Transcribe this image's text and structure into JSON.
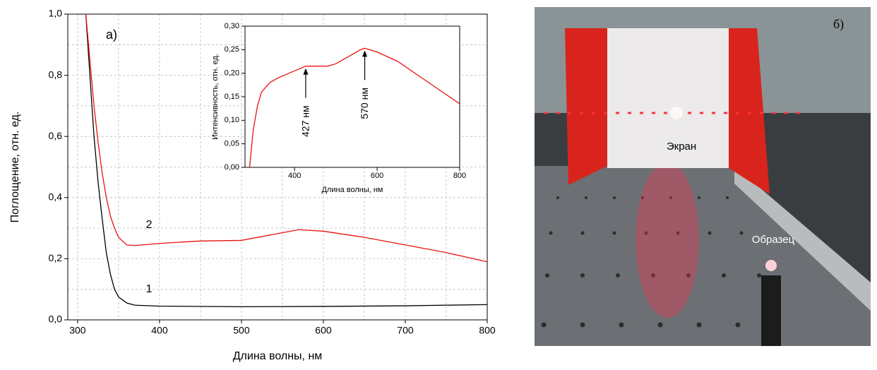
{
  "chart_data": [
    {
      "type": "line",
      "panel_label": "а)",
      "xlabel": "Длина волны, нм",
      "ylabel": "Поглощение, отн. ед.",
      "xlim": [
        288,
        800
      ],
      "ylim": [
        0,
        1
      ],
      "xticks": [
        300,
        400,
        500,
        600,
        700,
        800
      ],
      "yticks": [
        {
          "value": 0,
          "label": "0,0"
        },
        {
          "value": 0.2,
          "label": "0,2"
        },
        {
          "value": 0.4,
          "label": "0,4"
        },
        {
          "value": 0.6,
          "label": "0,6"
        },
        {
          "value": 0.8,
          "label": "0,8"
        },
        {
          "value": 1,
          "label": "1,0"
        }
      ],
      "minor_xticks": [
        350,
        450,
        550,
        650,
        750
      ],
      "minor_yticks": [
        0.1,
        0.3,
        0.5,
        0.7,
        0.9
      ],
      "grid": true,
      "series": [
        {
          "name": "1",
          "color": "#000000",
          "x": [
            310,
            315,
            320,
            325,
            330,
            335,
            340,
            345,
            350,
            360,
            370,
            400,
            500,
            600,
            700,
            800
          ],
          "values": [
            1.0,
            0.8,
            0.6,
            0.45,
            0.33,
            0.22,
            0.15,
            0.1,
            0.075,
            0.055,
            0.048,
            0.045,
            0.043,
            0.044,
            0.046,
            0.05
          ]
        },
        {
          "name": "2",
          "color": "#e8120c",
          "x": [
            310,
            315,
            320,
            325,
            330,
            335,
            340,
            345,
            350,
            360,
            370,
            400,
            450,
            500,
            540,
            570,
            600,
            650,
            700,
            750,
            800
          ],
          "values": [
            1.0,
            0.85,
            0.7,
            0.58,
            0.48,
            0.4,
            0.34,
            0.3,
            0.27,
            0.245,
            0.243,
            0.25,
            0.258,
            0.26,
            0.28,
            0.295,
            0.29,
            0.27,
            0.245,
            0.22,
            0.19
          ]
        }
      ]
    },
    {
      "type": "line",
      "xlabel": "Длина волны, нм",
      "ylabel": "Интенсивность, отн. ед.",
      "xlim": [
        280,
        800
      ],
      "ylim": [
        0,
        0.3
      ],
      "xticks": [
        400,
        600,
        800
      ],
      "yticks": [
        {
          "value": 0,
          "label": "0,00"
        },
        {
          "value": 0.05,
          "label": "0,05"
        },
        {
          "value": 0.1,
          "label": "0,10"
        },
        {
          "value": 0.15,
          "label": "0,15"
        },
        {
          "value": 0.2,
          "label": "0,20"
        },
        {
          "value": 0.25,
          "label": "0,25"
        },
        {
          "value": 0.3,
          "label": "0,30"
        }
      ],
      "grid": false,
      "series": [
        {
          "color": "#e8120c",
          "x": [
            291,
            300,
            310,
            320,
            340,
            360,
            400,
            427,
            450,
            480,
            500,
            530,
            560,
            570,
            600,
            650,
            700,
            750,
            800
          ],
          "values": [
            0,
            0.08,
            0.13,
            0.16,
            0.18,
            0.19,
            0.205,
            0.215,
            0.215,
            0.215,
            0.22,
            0.235,
            0.25,
            0.253,
            0.245,
            0.225,
            0.195,
            0.165,
            0.135
          ]
        }
      ],
      "annotations": [
        {
          "label": "427 нм",
          "x": 427
        },
        {
          "label": "570 нм",
          "x": 570
        }
      ]
    }
  ],
  "photo": {
    "panel_label": "б)",
    "labels": [
      "Экран",
      "Образец"
    ]
  }
}
